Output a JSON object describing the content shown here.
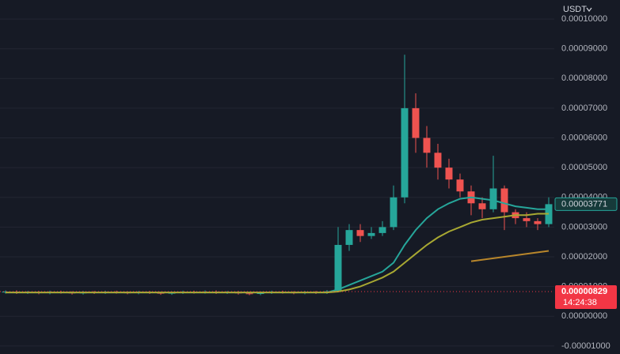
{
  "chart_data": {
    "type": "candlestick",
    "currency": "USDT",
    "up_color": "#26a69a",
    "down_color": "#ef5350",
    "ylim": [
      -1.27e-05,
      0.0001064
    ],
    "yticks": [
      {
        "value": 0.0001,
        "label": "0.00010000"
      },
      {
        "value": 9e-05,
        "label": "0.00009000"
      },
      {
        "value": 8e-05,
        "label": "0.00008000"
      },
      {
        "value": 7e-05,
        "label": "0.00007000"
      },
      {
        "value": 6e-05,
        "label": "0.00006000"
      },
      {
        "value": 5e-05,
        "label": "0.00005000"
      },
      {
        "value": 4e-05,
        "label": "0.00004000"
      },
      {
        "value": 3e-05,
        "label": "0.00003000"
      },
      {
        "value": 2e-05,
        "label": "0.00002000"
      },
      {
        "value": 1e-05,
        "label": "0.00001000"
      },
      {
        "value": 0,
        "label": "0.00000000"
      },
      {
        "value": -1e-05,
        "label": "-0.00001000"
      }
    ],
    "grid": true,
    "open": [
      8e-06,
      8.3e-06,
      7.9e-06,
      8.1e-06,
      7.8e-06,
      8.2e-06,
      8e-06,
      7.7e-06,
      8.1e-06,
      7.9e-06,
      8.2e-06,
      8e-06,
      7.8e-06,
      8.1e-06,
      7.9e-06,
      7.6e-06,
      7.9e-06,
      8.2e-06,
      8e-06,
      8.3e-06,
      7.9e-06,
      8.1e-06,
      7.7e-06,
      7.5e-06,
      7.9e-06,
      8.2e-06,
      8e-06,
      7.8e-06,
      8.1e-06,
      7.9e-06,
      8.4e-06,
      2.4e-05,
      2.9e-05,
      2.7e-05,
      2.8e-05,
      3e-05,
      4e-05,
      7e-05,
      6e-05,
      5.5e-05,
      5e-05,
      4.6e-05,
      4.2e-05,
      3.8e-05,
      3.6e-05,
      4.3e-05,
      3.5e-05,
      3.3e-05,
      3.2e-05,
      3.1e-05
    ],
    "close": [
      8.3e-06,
      7.9e-06,
      8.1e-06,
      7.8e-06,
      8.2e-06,
      8e-06,
      7.7e-06,
      8.1e-06,
      7.9e-06,
      8.2e-06,
      8e-06,
      7.8e-06,
      8.1e-06,
      7.9e-06,
      7.6e-06,
      7.9e-06,
      8.2e-06,
      8e-06,
      8.3e-06,
      7.9e-06,
      8.1e-06,
      7.7e-06,
      7.5e-06,
      7.9e-06,
      8.2e-06,
      8e-06,
      7.8e-06,
      8.1e-06,
      7.9e-06,
      8.4e-06,
      2.4e-05,
      2.9e-05,
      2.7e-05,
      2.8e-05,
      3e-05,
      4e-05,
      7e-05,
      6e-05,
      5.5e-05,
      5e-05,
      4.6e-05,
      4.2e-05,
      3.8e-05,
      3.6e-05,
      4.3e-05,
      3.5e-05,
      3.3e-05,
      3.2e-05,
      3.1e-05,
      3.771e-05
    ],
    "high": [
      8.7e-06,
      8.7e-06,
      8.5e-06,
      8.5e-06,
      8.6e-06,
      8.6e-06,
      8.4e-06,
      8.5e-06,
      8.5e-06,
      8.6e-06,
      8.6e-06,
      8.4e-06,
      8.5e-06,
      8.5e-06,
      8.3e-06,
      8.3e-06,
      8.6e-06,
      8.6e-06,
      8.7e-06,
      8.7e-06,
      8.5e-06,
      8.5e-06,
      8.1e-06,
      8.3e-06,
      8.6e-06,
      8.6e-06,
      8.4e-06,
      8.5e-06,
      8.5e-06,
      8.8e-06,
      3e-05,
      3.1e-05,
      3.1e-05,
      3e-05,
      3.2e-05,
      4.4e-05,
      8.8e-05,
      7.5e-05,
      6.4e-05,
      5.8e-05,
      5.3e-05,
      4.8e-05,
      4.4e-05,
      4e-05,
      5.4e-05,
      4.4e-05,
      3.6e-05,
      3.5e-05,
      3.3e-05,
      4e-05
    ],
    "low": [
      7.6e-06,
      7.5e-06,
      7.5e-06,
      7.4e-06,
      7.4e-06,
      7.6e-06,
      7.3e-06,
      7.3e-06,
      7.5e-06,
      7.5e-06,
      7.6e-06,
      7.4e-06,
      7.4e-06,
      7.5e-06,
      7.2e-06,
      7.2e-06,
      7.5e-06,
      7.6e-06,
      7.6e-06,
      7.5e-06,
      7.5e-06,
      7.3e-06,
      7.1e-06,
      7.1e-06,
      7.5e-06,
      7.6e-06,
      7.4e-06,
      7.4e-06,
      7.5e-06,
      7.5e-06,
      8.2e-06,
      2.2e-05,
      2.5e-05,
      2.6e-05,
      2.7e-05,
      2.9e-05,
      3.8e-05,
      5.5e-05,
      5e-05,
      4.6e-05,
      4.3e-05,
      4e-05,
      3.4e-05,
      3.3e-05,
      3.5e-05,
      2.9e-05,
      3.1e-05,
      3e-05,
      2.9e-05,
      3e-05
    ],
    "lines": [
      {
        "color": "#26a69a",
        "values": [
          8e-06,
          8e-06,
          8e-06,
          8e-06,
          8e-06,
          8e-06,
          8e-06,
          8e-06,
          8e-06,
          8e-06,
          8e-06,
          8e-06,
          8e-06,
          8e-06,
          8e-06,
          8e-06,
          8e-06,
          8e-06,
          8e-06,
          8e-06,
          8e-06,
          8e-06,
          8e-06,
          8e-06,
          8e-06,
          8e-06,
          8e-06,
          8e-06,
          8e-06,
          8e-06,
          9e-06,
          1.05e-05,
          1.2e-05,
          1.35e-05,
          1.5e-05,
          1.8e-05,
          2.4e-05,
          2.9e-05,
          3.3e-05,
          3.6e-05,
          3.8e-05,
          3.95e-05,
          4e-05,
          3.95e-05,
          3.9e-05,
          3.8e-05,
          3.7e-05,
          3.65e-05,
          3.6e-05,
          3.6e-05
        ]
      },
      {
        "color": "#a8a832",
        "values": [
          8e-06,
          8e-06,
          8e-06,
          8e-06,
          8e-06,
          8e-06,
          8e-06,
          8e-06,
          8e-06,
          8e-06,
          8e-06,
          8e-06,
          8e-06,
          8e-06,
          8e-06,
          8e-06,
          8e-06,
          8e-06,
          8e-06,
          8e-06,
          8e-06,
          8e-06,
          8e-06,
          8e-06,
          8e-06,
          8e-06,
          8e-06,
          8e-06,
          8e-06,
          8e-06,
          8.3e-06,
          9e-06,
          1e-05,
          1.15e-05,
          1.3e-05,
          1.5e-05,
          1.8e-05,
          2.1e-05,
          2.4e-05,
          2.65e-05,
          2.85e-05,
          3e-05,
          3.15e-05,
          3.25e-05,
          3.3e-05,
          3.35e-05,
          3.4e-05,
          3.4e-05,
          3.45e-05,
          3.45e-05
        ]
      },
      {
        "color": "#b8862b",
        "values": [
          null,
          null,
          null,
          null,
          null,
          null,
          null,
          null,
          null,
          null,
          null,
          null,
          null,
          null,
          null,
          null,
          null,
          null,
          null,
          null,
          null,
          null,
          null,
          null,
          null,
          null,
          null,
          null,
          null,
          null,
          null,
          null,
          null,
          null,
          null,
          null,
          null,
          null,
          null,
          null,
          null,
          null,
          1.85e-05,
          1.9e-05,
          1.95e-05,
          2e-05,
          2.05e-05,
          2.1e-05,
          2.15e-05,
          2.2e-05
        ]
      }
    ],
    "last_price": 3.771e-05,
    "mark_price": 8.29e-06,
    "countdown": "14:24:38"
  }
}
